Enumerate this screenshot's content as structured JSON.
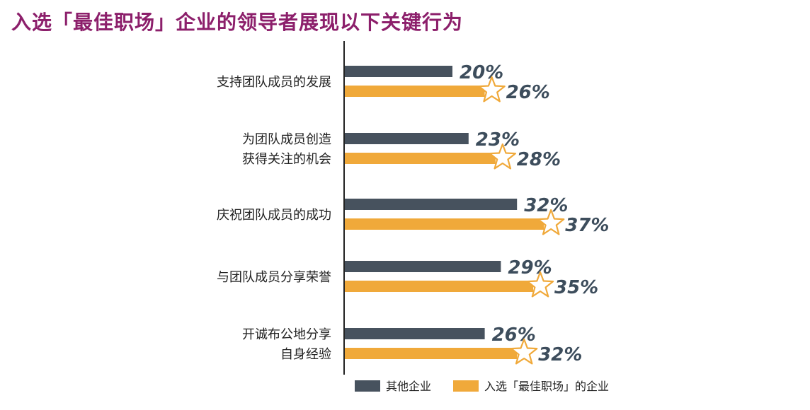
{
  "chart_data": {
    "type": "bar",
    "orientation": "horizontal",
    "title": "入选「最佳职场」企业的领导者展现以下关键行为",
    "categories": [
      [
        "支持团队成员的发展"
      ],
      [
        "为团队成员创造",
        "获得关注的机会"
      ],
      [
        "庆祝团队成员的成功"
      ],
      [
        "与团队成员分享荣誉"
      ],
      [
        "开诚布公地分享",
        "自身经验"
      ]
    ],
    "series": [
      {
        "name": "其他企业",
        "values": [
          20,
          23,
          32,
          29,
          26
        ],
        "labels": [
          "20%",
          "23%",
          "32%",
          "29%",
          "26%"
        ],
        "color": "#47525e"
      },
      {
        "name": "入选「最佳职场」的企业",
        "values": [
          26,
          28,
          37,
          35,
          32
        ],
        "labels": [
          "26%",
          "28%",
          "37%",
          "35%",
          "32%"
        ],
        "color": "#f0a93a",
        "marker": "star"
      }
    ],
    "value_unit": "%",
    "xlim": [
      0,
      100
    ],
    "grid": false,
    "legend_position": "bottom"
  },
  "colors": {
    "title": "#8c1f6b",
    "axis": "#222222",
    "value_text": "#3d4d5c",
    "star_stroke": "#f0a93a"
  }
}
